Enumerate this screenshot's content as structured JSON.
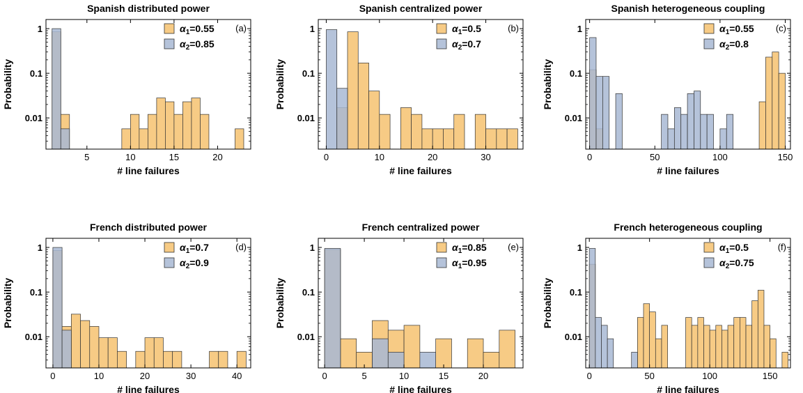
{
  "colors": {
    "series1": "#f7c87e",
    "series2": "#a8b9d4",
    "overlap": "#a9a49a",
    "stroke": "#333333"
  },
  "chart_data": [
    {
      "type": "bar",
      "title": "Spanish distributed power",
      "tag": "(a)",
      "xlabel": "# line failures",
      "ylabel": "Probability",
      "xlim": [
        0.3,
        23.8
      ],
      "ylim": [
        0.002,
        1.6
      ],
      "yscale": "log",
      "xticks": [
        5,
        10,
        15,
        20
      ],
      "yticks": [
        1,
        0.1,
        0.01
      ],
      "ytick_labels": [
        "1",
        "0.1",
        "0.01"
      ],
      "series": [
        {
          "name_prefix": "α",
          "name_sub": "1",
          "name_value": "=0.55",
          "bin_width": 1,
          "x": [
            1,
            2,
            9,
            10,
            11,
            12,
            13,
            14,
            15,
            16,
            17,
            18,
            22
          ],
          "values": [
            0.85,
            0.012,
            0.0057,
            0.012,
            0.0057,
            0.012,
            0.028,
            0.023,
            0.012,
            0.023,
            0.028,
            0.012,
            0.0057
          ]
        },
        {
          "name_prefix": "α",
          "name_sub": "2",
          "name_value": "=0.85",
          "bin_width": 1,
          "x": [
            1,
            2
          ],
          "values": [
            1.0,
            0.0057
          ]
        }
      ]
    },
    {
      "type": "bar",
      "title": "Spanish centralized power",
      "tag": "(b)",
      "xlabel": "# line failures",
      "ylabel": "Probability",
      "xlim": [
        -1.5,
        37
      ],
      "ylim": [
        0.002,
        1.6
      ],
      "yscale": "log",
      "xticks": [
        0,
        10,
        20,
        30
      ],
      "yticks": [
        1,
        0.1,
        0.01
      ],
      "ytick_labels": [
        "1",
        "0.1",
        "0.01"
      ],
      "series": [
        {
          "name_prefix": "α",
          "name_sub": "1",
          "name_value": "=0.5",
          "bin_width": 2,
          "x": [
            2,
            4,
            6,
            8,
            10,
            14,
            16,
            18,
            20,
            22,
            24,
            28,
            30,
            32,
            34
          ],
          "values": [
            0.017,
            0.85,
            0.17,
            0.04,
            0.012,
            0.017,
            0.012,
            0.0057,
            0.0057,
            0.0057,
            0.012,
            0.012,
            0.0057,
            0.0057,
            0.0057
          ]
        },
        {
          "name_prefix": "α",
          "name_sub": "2",
          "name_value": "=0.7",
          "bin_width": 2,
          "x": [
            0,
            2
          ],
          "values": [
            0.95,
            0.046
          ]
        }
      ]
    },
    {
      "type": "bar",
      "title": "Spanish heterogeneous coupling",
      "tag": "(c)",
      "xlabel": "# line failures",
      "ylabel": "Probability",
      "xlim": [
        -3,
        154
      ],
      "ylim": [
        0.002,
        1.6
      ],
      "yscale": "log",
      "xticks": [
        0,
        50,
        100,
        150
      ],
      "yticks": [
        1,
        0.1,
        0.01
      ],
      "ytick_labels": [
        "1",
        "0.1",
        "0.01"
      ],
      "series": [
        {
          "name_prefix": "α",
          "name_sub": "1",
          "name_value": "=0.55",
          "bin_width": 5,
          "x": [
            0,
            5,
            130,
            135,
            140,
            145
          ],
          "values": [
            0.12,
            0.0057,
            0.023,
            0.23,
            0.3,
            0.1
          ]
        },
        {
          "name_prefix": "α",
          "name_sub": "2",
          "name_value": "=0.8",
          "bin_width": 5,
          "x": [
            0,
            5,
            10,
            20,
            55,
            60,
            65,
            70,
            75,
            80,
            85,
            90,
            100,
            105
          ],
          "values": [
            0.63,
            0.085,
            0.085,
            0.035,
            0.012,
            0.0057,
            0.017,
            0.012,
            0.035,
            0.04,
            0.012,
            0.012,
            0.0057,
            0.012
          ]
        }
      ]
    },
    {
      "type": "bar",
      "title": "French distributed power",
      "tag": "(d)",
      "xlabel": "# line failures",
      "ylabel": "Probability",
      "xlim": [
        -1.5,
        43
      ],
      "ylim": [
        0.002,
        1.6
      ],
      "yscale": "log",
      "xticks": [
        0,
        10,
        20,
        30,
        40
      ],
      "yticks": [
        1,
        0.1,
        0.01
      ],
      "ytick_labels": [
        "1",
        "0.1",
        "0.01"
      ],
      "series": [
        {
          "name_prefix": "α",
          "name_sub": "1",
          "name_value": "=0.7",
          "bin_width": 2,
          "x": [
            0,
            2,
            4,
            6,
            8,
            10,
            12,
            14,
            18,
            20,
            22,
            24,
            26,
            34,
            36,
            40
          ],
          "values": [
            0.85,
            0.017,
            0.032,
            0.023,
            0.017,
            0.0095,
            0.0095,
            0.0047,
            0.0047,
            0.0095,
            0.0095,
            0.0047,
            0.0047,
            0.0047,
            0.0047,
            0.0047
          ]
        },
        {
          "name_prefix": "α",
          "name_sub": "2",
          "name_value": "=0.9",
          "bin_width": 2,
          "x": [
            0,
            2
          ],
          "values": [
            1.0,
            0.014
          ]
        }
      ]
    },
    {
      "type": "bar",
      "title": "French centralized power",
      "tag": "(e)",
      "xlabel": "# line failures",
      "ylabel": "Probability",
      "xlim": [
        -0.8,
        25
      ],
      "ylim": [
        0.002,
        1.6
      ],
      "yscale": "log",
      "xticks": [
        0,
        5,
        10,
        15,
        20
      ],
      "yticks": [
        1,
        0.1,
        0.01
      ],
      "ytick_labels": [
        "1",
        "0.1",
        "0.01"
      ],
      "series": [
        {
          "name_prefix": "α",
          "name_sub": "1",
          "name_value": "=0.85",
          "bin_width": 2,
          "x": [
            0,
            2,
            4,
            6,
            8,
            10,
            14,
            18,
            20,
            22
          ],
          "values": [
            0.9,
            0.009,
            0.0045,
            0.023,
            0.014,
            0.018,
            0.009,
            0.009,
            0.0045,
            0.014
          ]
        },
        {
          "name_prefix": "α",
          "name_sub": "1",
          "name_value": "=0.95",
          "bin_width": 2,
          "x": [
            0,
            6,
            8,
            12
          ],
          "values": [
            0.95,
            0.009,
            0.0045,
            0.0045
          ]
        }
      ]
    },
    {
      "type": "bar",
      "title": "French heterogeneous coupling",
      "tag": "(f)",
      "xlabel": "# line failures",
      "ylabel": "Probability",
      "xlim": [
        -3,
        167
      ],
      "ylim": [
        0.002,
        1.6
      ],
      "yscale": "log",
      "xticks": [
        0,
        50,
        100,
        150
      ],
      "yticks": [
        1,
        0.1,
        0.01
      ],
      "ytick_labels": [
        "1",
        "0.1",
        "0.01"
      ],
      "series": [
        {
          "name_prefix": "α",
          "name_sub": "1",
          "name_value": "=0.5",
          "bin_width": 5,
          "x": [
            0,
            40,
            45,
            50,
            55,
            60,
            80,
            85,
            90,
            95,
            100,
            105,
            110,
            115,
            120,
            125,
            130,
            135,
            140,
            145,
            150,
            160
          ],
          "values": [
            0.42,
            0.027,
            0.055,
            0.036,
            0.009,
            0.018,
            0.027,
            0.018,
            0.027,
            0.018,
            0.014,
            0.018,
            0.014,
            0.018,
            0.027,
            0.027,
            0.018,
            0.064,
            0.11,
            0.018,
            0.009,
            0.0045
          ]
        },
        {
          "name_prefix": "α",
          "name_sub": "2",
          "name_value": "=0.75",
          "bin_width": 5,
          "x": [
            0,
            5,
            10,
            15,
            35
          ],
          "values": [
            0.95,
            0.027,
            0.018,
            0.009,
            0.0045
          ]
        }
      ]
    }
  ]
}
